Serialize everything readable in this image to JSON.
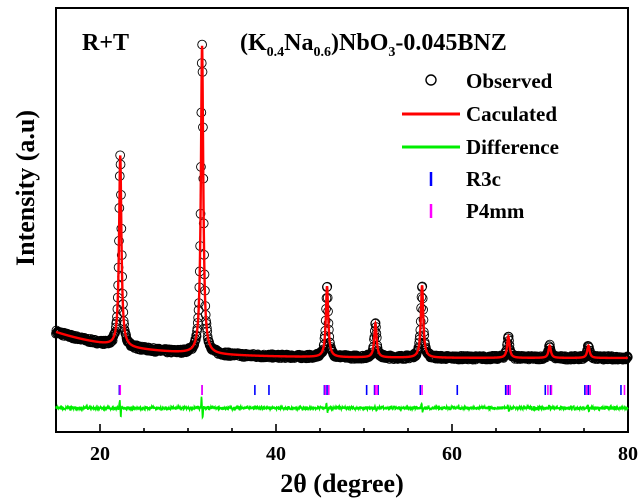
{
  "chart_data": {
    "type": "line",
    "xlabel": "2θ (degree)",
    "ylabel": "Intensity (a.u)",
    "xlim": [
      15,
      80
    ],
    "x_ticks": [
      "20",
      "40",
      "60",
      "80"
    ],
    "annotations": {
      "phase_label": "R+T",
      "formula": {
        "open": "(K",
        "k_sub": "0.4",
        "na": "Na",
        "na_sub": "0.6",
        "rest": ")NbO",
        "o_sub": "3",
        "tail": "-0.045BNZ"
      }
    },
    "legend": {
      "placement": "top-right",
      "entries": [
        {
          "label": "Observed",
          "marker": "circle",
          "color": "#000000"
        },
        {
          "label": "Caculated",
          "marker": "line",
          "color": "#ff0000"
        },
        {
          "label": "Difference",
          "marker": "line",
          "color": "#00ee00"
        },
        {
          "label": "R3c",
          "marker": "tick",
          "color": "#0000ff"
        },
        {
          "label": "P4mm",
          "marker": "tick",
          "color": "#ff00ff"
        }
      ]
    },
    "peaks": [
      {
        "x": 22.3,
        "height": 0.62
      },
      {
        "x": 31.6,
        "height": 1.0
      },
      {
        "x": 45.8,
        "height": 0.23
      },
      {
        "x": 51.3,
        "height": 0.11
      },
      {
        "x": 56.6,
        "height": 0.235
      },
      {
        "x": 66.4,
        "height": 0.07
      },
      {
        "x": 71.1,
        "height": 0.04
      },
      {
        "x": 75.5,
        "height": 0.04
      }
    ],
    "bragg_r3c": [
      22.2,
      31.6,
      37.6,
      39.2,
      45.5,
      45.8,
      50.3,
      51.2,
      51.6,
      56.4,
      60.6,
      66.1,
      66.4,
      70.6,
      71.2,
      75.1,
      75.5,
      79.2
    ],
    "bragg_p4mm": [
      22.3,
      31.6,
      45.6,
      46.0,
      51.3,
      51.5,
      56.6,
      66.3,
      66.6,
      70.9,
      71.3,
      75.3,
      75.7,
      79.6
    ],
    "colors": {
      "observed": "#000000",
      "calculated": "#ff0000",
      "difference": "#00ee00",
      "r3c": "#0000ff",
      "p4mm": "#ff00ff"
    }
  }
}
